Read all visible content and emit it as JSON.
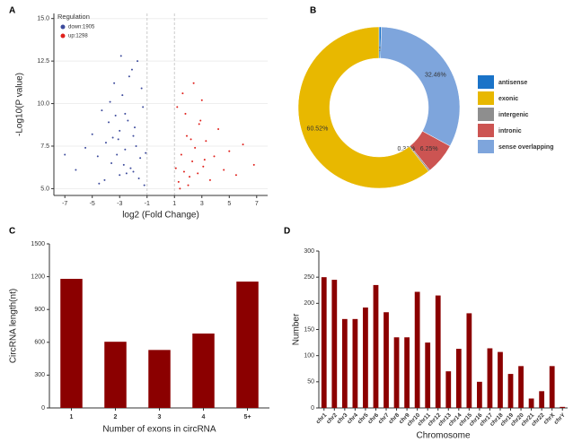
{
  "chart_data": [
    {
      "panel": "A",
      "type": "scatter",
      "xlabel": "log2 (Fold Change)",
      "ylabel": "-Log10(P value)",
      "legend_title": "Regulation",
      "legend": "upper left",
      "grid": true,
      "vlines": [
        -1,
        1
      ],
      "xlim": [
        -7.8,
        7.8
      ],
      "xticks": [
        -7,
        -5,
        -3,
        -1,
        1,
        3,
        5,
        7
      ],
      "ylim": [
        4.6,
        15.3
      ],
      "yticks": [
        {
          "value": 5,
          "label": "5.0"
        },
        {
          "value": 7.5,
          "label": "7.5"
        },
        {
          "value": 10,
          "label": "10.0"
        },
        {
          "value": 12.5,
          "label": "12.5"
        },
        {
          "value": 15,
          "label": "15.0"
        }
      ],
      "series": [
        {
          "name": "down:1905",
          "color": "#3d4b9c",
          "x": [
            -1.2,
            -1.5,
            -1.8,
            -2.0,
            -2.2,
            -2.4,
            -2.6,
            -2.8,
            -3.0,
            -3.2,
            -3.4,
            -3.6,
            -3.8,
            -4.0,
            -4.3,
            -4.6,
            -5.0,
            -5.5,
            -6.2,
            -7.0,
            -1.3,
            -1.6,
            -1.9,
            -2.1,
            -2.5,
            -2.9,
            -3.3,
            -3.7,
            -4.1,
            -2.7,
            -3.1,
            -1.4,
            -2.3,
            -3.5,
            -4.5,
            -1.1,
            -2.0,
            -3.0,
            -2.6,
            -1.7
          ],
          "values": [
            5.2,
            6.8,
            7.5,
            8.1,
            6.2,
            9.0,
            7.3,
            10.5,
            8.4,
            7.0,
            11.2,
            6.5,
            8.9,
            7.7,
            9.6,
            6.9,
            8.2,
            7.4,
            6.1,
            7.0,
            9.8,
            5.6,
            8.6,
            12.0,
            5.9,
            12.8,
            9.3,
            10.1,
            5.5,
            6.4,
            7.9,
            10.9,
            11.6,
            8.0,
            5.3,
            7.1,
            6.0,
            5.8,
            9.4,
            12.5
          ]
        },
        {
          "name": "up:1298",
          "color": "#e0201b",
          "x": [
            1.1,
            1.3,
            1.5,
            1.7,
            1.9,
            2.1,
            2.3,
            2.5,
            2.7,
            2.9,
            3.1,
            3.3,
            3.6,
            3.9,
            4.2,
            4.6,
            5.0,
            5.5,
            6.0,
            6.8,
            1.2,
            1.6,
            2.0,
            2.4,
            2.8,
            3.2,
            1.4,
            2.2,
            3.0,
            1.8
          ],
          "values": [
            6.2,
            5.4,
            7.0,
            6.0,
            8.1,
            5.7,
            6.6,
            7.4,
            5.9,
            9.0,
            6.3,
            7.8,
            5.5,
            6.9,
            8.5,
            6.1,
            7.2,
            5.8,
            7.6,
            6.4,
            9.8,
            10.6,
            5.2,
            11.2,
            8.8,
            6.7,
            5.0,
            7.9,
            10.2,
            9.4
          ]
        }
      ]
    },
    {
      "panel": "B",
      "type": "pie",
      "donut": true,
      "categories": [
        "antisense",
        "sense overlapping",
        "intronic",
        "intergenic",
        "exonic"
      ],
      "values": [
        0.46,
        32.46,
        6.25,
        0.31,
        60.52
      ],
      "value_labels": [
        "0.46%",
        "32.46%",
        "6.25%",
        "0.31%",
        "60.52%"
      ],
      "colors": [
        "#1a73c8",
        "#7ea5dc",
        "#cc5452",
        "#8e8e8e",
        "#e8b800"
      ],
      "legend_order": [
        0,
        4,
        3,
        2,
        1
      ]
    },
    {
      "panel": "C",
      "type": "bar",
      "xlabel": "Number of exons in circRNA",
      "ylabel": "CircRNA length(nt)",
      "categories": [
        "1",
        "2",
        "3",
        "4",
        "5+"
      ],
      "values": [
        1180,
        605,
        530,
        680,
        1155
      ],
      "color": "#8b0000",
      "ylim": [
        0,
        1500
      ],
      "yticks": [
        0,
        300,
        600,
        900,
        1200,
        1500
      ]
    },
    {
      "panel": "D",
      "type": "bar",
      "xlabel": "Chromosome",
      "ylabel": "Number",
      "rotate_labels": true,
      "categories": [
        "chr1",
        "chr2",
        "chr3",
        "chr4",
        "chr5",
        "chr6",
        "chr7",
        "chr8",
        "chr9",
        "chr10",
        "chr11",
        "chr12",
        "chr13",
        "chr14",
        "chr15",
        "chr16",
        "chr17",
        "chr18",
        "chr19",
        "chr20",
        "chr21",
        "chr22",
        "chrX",
        "chrY"
      ],
      "values": [
        250,
        245,
        170,
        170,
        192,
        235,
        183,
        135,
        135,
        222,
        125,
        215,
        70,
        113,
        181,
        50,
        114,
        107,
        65,
        80,
        18,
        32,
        80,
        2
      ],
      "color": "#8b0000",
      "ylim": [
        0,
        300
      ],
      "yticks": [
        0,
        50,
        100,
        150,
        200,
        250,
        300
      ]
    }
  ]
}
